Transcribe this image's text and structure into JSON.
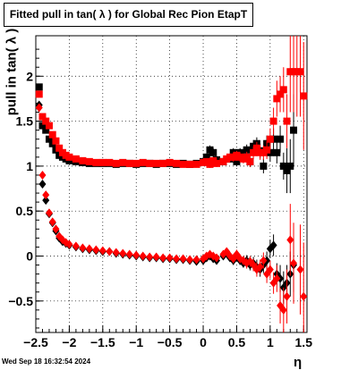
{
  "title": "Fitted pull in tan( λ ) for Global Rec Pion EtapT",
  "xlabel": "η",
  "ylabel": "pull in tan( λ )",
  "timestamp": "Wed Sep 18 16:32:54 2024",
  "chart_data": {
    "type": "scatter",
    "xlim": [
      -2.5,
      1.55
    ],
    "ylim": [
      -0.85,
      2.45
    ],
    "grid": true,
    "x_ticks": [
      -2.5,
      -2,
      -1.5,
      -1,
      -0.5,
      0,
      0.5,
      1,
      1.5
    ],
    "x_tick_labels": [
      "−2.5",
      "−2",
      "−1.5",
      "−1",
      "−0.5",
      "0",
      "0.5",
      "1",
      "1.5"
    ],
    "y_ticks": [
      -0.5,
      0,
      0.5,
      1,
      1.5,
      2
    ],
    "y_tick_labels": [
      "−0.5",
      "0",
      "0.5",
      "1",
      "1.5",
      "2"
    ],
    "series": [
      {
        "color": "#000000",
        "marker": "square",
        "points": [
          [
            -2.45,
            1.88,
            0.03
          ],
          [
            -2.4,
            1.45,
            0.03
          ],
          [
            -2.35,
            1.4,
            0.02
          ],
          [
            -2.3,
            1.3,
            0.02
          ],
          [
            -2.25,
            1.25,
            0.02
          ],
          [
            -2.2,
            1.18,
            0.02
          ],
          [
            -2.15,
            1.12,
            0.02
          ],
          [
            -2.1,
            1.1,
            0.02
          ],
          [
            -2.05,
            1.08,
            0.02
          ],
          [
            -2.0,
            1.06,
            0.02
          ],
          [
            -1.9,
            1.05,
            0.02
          ],
          [
            -1.8,
            1.04,
            0.02
          ],
          [
            -1.7,
            1.03,
            0.02
          ],
          [
            -1.6,
            1.03,
            0.02
          ],
          [
            -1.5,
            1.03,
            0.02
          ],
          [
            -1.4,
            1.03,
            0.02
          ],
          [
            -1.3,
            1.02,
            0.02
          ],
          [
            -1.2,
            1.03,
            0.02
          ],
          [
            -1.1,
            1.03,
            0.02
          ],
          [
            -1.0,
            1.02,
            0.02
          ],
          [
            -0.9,
            1.03,
            0.02
          ],
          [
            -0.8,
            1.03,
            0.02
          ],
          [
            -0.7,
            1.02,
            0.02
          ],
          [
            -0.6,
            1.03,
            0.02
          ],
          [
            -0.5,
            1.03,
            0.02
          ],
          [
            -0.4,
            1.02,
            0.02
          ],
          [
            -0.3,
            1.03,
            0.02
          ],
          [
            -0.2,
            1.02,
            0.02
          ],
          [
            -0.1,
            1.03,
            0.02
          ],
          [
            0.0,
            1.05,
            0.03
          ],
          [
            0.05,
            1.1,
            0.04
          ],
          [
            0.1,
            1.18,
            0.05
          ],
          [
            0.15,
            1.15,
            0.05
          ],
          [
            0.2,
            1.07,
            0.04
          ],
          [
            0.3,
            1.05,
            0.04
          ],
          [
            0.4,
            1.08,
            0.04
          ],
          [
            0.45,
            1.15,
            0.05
          ],
          [
            0.5,
            1.05,
            0.05
          ],
          [
            0.55,
            1.15,
            0.05
          ],
          [
            0.6,
            1.1,
            0.05
          ],
          [
            0.65,
            1.18,
            0.06
          ],
          [
            0.7,
            1.05,
            0.06
          ],
          [
            0.75,
            1.22,
            0.07
          ],
          [
            0.8,
            1.25,
            0.07
          ],
          [
            0.85,
            1.17,
            0.08
          ],
          [
            0.9,
            1.0,
            0.08
          ],
          [
            0.95,
            1.25,
            0.09
          ],
          [
            1.0,
            1.15,
            0.1
          ],
          [
            1.05,
            1.3,
            0.12
          ],
          [
            1.1,
            1.15,
            0.12
          ],
          [
            1.15,
            1.3,
            0.15
          ],
          [
            1.2,
            1.0,
            0.15
          ],
          [
            1.25,
            0.95,
            0.25
          ],
          [
            1.3,
            1.0,
            0.3
          ],
          [
            1.35,
            1.4,
            0.4
          ]
        ]
      },
      {
        "color": "#000000",
        "marker": "diamond",
        "points": [
          [
            -2.45,
            1.68,
            0.03
          ],
          [
            -2.4,
            0.8,
            0.03
          ],
          [
            -2.35,
            0.62,
            0.02
          ],
          [
            -2.3,
            0.47,
            0.02
          ],
          [
            -2.25,
            0.37,
            0.02
          ],
          [
            -2.2,
            0.28,
            0.02
          ],
          [
            -2.15,
            0.2,
            0.02
          ],
          [
            -2.1,
            0.16,
            0.02
          ],
          [
            -2.05,
            0.14,
            0.02
          ],
          [
            -2.0,
            0.12,
            0.02
          ],
          [
            -1.9,
            0.1,
            0.02
          ],
          [
            -1.8,
            0.08,
            0.02
          ],
          [
            -1.7,
            0.07,
            0.02
          ],
          [
            -1.6,
            0.06,
            0.02
          ],
          [
            -1.5,
            0.05,
            0.02
          ],
          [
            -1.4,
            0.05,
            0.02
          ],
          [
            -1.3,
            0.03,
            0.02
          ],
          [
            -1.2,
            0.02,
            0.02
          ],
          [
            -1.1,
            0.01,
            0.02
          ],
          [
            -1.0,
            0.0,
            0.02
          ],
          [
            -0.9,
            -0.01,
            0.02
          ],
          [
            -0.8,
            -0.02,
            0.02
          ],
          [
            -0.7,
            -0.02,
            0.02
          ],
          [
            -0.6,
            -0.03,
            0.02
          ],
          [
            -0.5,
            -0.03,
            0.02
          ],
          [
            -0.4,
            -0.04,
            0.02
          ],
          [
            -0.3,
            -0.04,
            0.02
          ],
          [
            -0.2,
            -0.05,
            0.02
          ],
          [
            -0.1,
            -0.06,
            0.02
          ],
          [
            0.0,
            -0.05,
            0.03
          ],
          [
            0.05,
            -0.02,
            0.03
          ],
          [
            0.1,
            0.0,
            0.04
          ],
          [
            0.15,
            -0.03,
            0.04
          ],
          [
            0.2,
            -0.05,
            0.04
          ],
          [
            0.3,
            0.0,
            0.04
          ],
          [
            0.35,
            0.03,
            0.04
          ],
          [
            0.4,
            -0.02,
            0.04
          ],
          [
            0.45,
            -0.05,
            0.05
          ],
          [
            0.5,
            0.0,
            0.05
          ],
          [
            0.55,
            -0.05,
            0.05
          ],
          [
            0.6,
            -0.08,
            0.05
          ],
          [
            0.65,
            -0.05,
            0.06
          ],
          [
            0.7,
            -0.1,
            0.06
          ],
          [
            0.75,
            -0.08,
            0.07
          ],
          [
            0.8,
            -0.12,
            0.08
          ],
          [
            0.85,
            -0.15,
            0.08
          ],
          [
            0.9,
            -0.1,
            0.09
          ],
          [
            0.95,
            -0.05,
            0.1
          ],
          [
            1.0,
            0.08,
            0.1
          ],
          [
            1.05,
            0.12,
            0.12
          ],
          [
            1.1,
            -0.2,
            0.12
          ],
          [
            1.15,
            -0.25,
            0.15
          ],
          [
            1.2,
            -0.35,
            0.18
          ],
          [
            1.25,
            -0.3,
            0.2
          ],
          [
            1.3,
            -0.2,
            0.25
          ],
          [
            1.35,
            -0.1,
            0.3
          ]
        ]
      },
      {
        "color": "#ff0000",
        "marker": "square",
        "points": [
          [
            -2.45,
            1.8,
            0.03
          ],
          [
            -2.4,
            1.55,
            0.03
          ],
          [
            -2.35,
            1.5,
            0.02
          ],
          [
            -2.3,
            1.45,
            0.02
          ],
          [
            -2.25,
            1.35,
            0.02
          ],
          [
            -2.2,
            1.28,
            0.02
          ],
          [
            -2.15,
            1.2,
            0.02
          ],
          [
            -2.1,
            1.15,
            0.02
          ],
          [
            -2.05,
            1.12,
            0.02
          ],
          [
            -2.0,
            1.1,
            0.02
          ],
          [
            -1.9,
            1.08,
            0.02
          ],
          [
            -1.8,
            1.06,
            0.02
          ],
          [
            -1.7,
            1.05,
            0.02
          ],
          [
            -1.6,
            1.04,
            0.02
          ],
          [
            -1.5,
            1.04,
            0.02
          ],
          [
            -1.4,
            1.04,
            0.02
          ],
          [
            -1.3,
            1.03,
            0.02
          ],
          [
            -1.2,
            1.04,
            0.02
          ],
          [
            -1.1,
            1.03,
            0.02
          ],
          [
            -1.0,
            1.03,
            0.02
          ],
          [
            -0.9,
            1.04,
            0.02
          ],
          [
            -0.8,
            1.03,
            0.02
          ],
          [
            -0.7,
            1.03,
            0.02
          ],
          [
            -0.6,
            1.03,
            0.02
          ],
          [
            -0.5,
            1.04,
            0.02
          ],
          [
            -0.4,
            1.03,
            0.02
          ],
          [
            -0.3,
            1.02,
            0.02
          ],
          [
            -0.2,
            1.02,
            0.02
          ],
          [
            -0.1,
            1.02,
            0.02
          ],
          [
            0.0,
            1.04,
            0.03
          ],
          [
            0.05,
            1.05,
            0.03
          ],
          [
            0.1,
            1.02,
            0.04
          ],
          [
            0.15,
            1.06,
            0.04
          ],
          [
            0.2,
            1.03,
            0.04
          ],
          [
            0.3,
            1.05,
            0.04
          ],
          [
            0.35,
            1.08,
            0.04
          ],
          [
            0.4,
            1.1,
            0.04
          ],
          [
            0.45,
            1.1,
            0.05
          ],
          [
            0.5,
            1.12,
            0.05
          ],
          [
            0.55,
            1.1,
            0.05
          ],
          [
            0.6,
            1.08,
            0.05
          ],
          [
            0.65,
            1.1,
            0.06
          ],
          [
            0.7,
            1.05,
            0.06
          ],
          [
            0.75,
            1.15,
            0.07
          ],
          [
            0.8,
            1.2,
            0.07
          ],
          [
            0.85,
            1.15,
            0.08
          ],
          [
            0.9,
            1.15,
            0.08
          ],
          [
            0.95,
            1.18,
            0.1
          ],
          [
            1.0,
            1.3,
            0.12
          ],
          [
            1.05,
            1.5,
            0.15
          ],
          [
            1.1,
            1.75,
            0.2
          ],
          [
            1.15,
            1.8,
            0.2
          ],
          [
            1.2,
            1.85,
            0.25
          ],
          [
            1.25,
            1.5,
            0.3
          ],
          [
            1.3,
            2.05,
            0.45
          ],
          [
            1.35,
            2.05,
            0.45
          ],
          [
            1.4,
            2.05,
            0.5
          ],
          [
            1.45,
            2.05,
            0.5
          ],
          [
            1.5,
            1.78,
            0.6
          ]
        ]
      },
      {
        "color": "#ff0000",
        "marker": "diamond",
        "points": [
          [
            -2.45,
            1.65,
            0.03
          ],
          [
            -2.4,
            0.9,
            0.03
          ],
          [
            -2.35,
            0.68,
            0.02
          ],
          [
            -2.3,
            0.48,
            0.02
          ],
          [
            -2.25,
            0.38,
            0.02
          ],
          [
            -2.2,
            0.3,
            0.02
          ],
          [
            -2.15,
            0.22,
            0.02
          ],
          [
            -2.1,
            0.18,
            0.02
          ],
          [
            -2.05,
            0.15,
            0.02
          ],
          [
            -2.0,
            0.13,
            0.02
          ],
          [
            -1.9,
            0.11,
            0.02
          ],
          [
            -1.8,
            0.09,
            0.02
          ],
          [
            -1.7,
            0.08,
            0.02
          ],
          [
            -1.6,
            0.07,
            0.02
          ],
          [
            -1.5,
            0.06,
            0.02
          ],
          [
            -1.4,
            0.05,
            0.02
          ],
          [
            -1.3,
            0.04,
            0.02
          ],
          [
            -1.2,
            0.03,
            0.02
          ],
          [
            -1.1,
            0.02,
            0.02
          ],
          [
            -1.0,
            0.01,
            0.02
          ],
          [
            -0.9,
            0.0,
            0.02
          ],
          [
            -0.8,
            -0.01,
            0.02
          ],
          [
            -0.7,
            -0.01,
            0.02
          ],
          [
            -0.6,
            -0.02,
            0.02
          ],
          [
            -0.5,
            -0.02,
            0.02
          ],
          [
            -0.4,
            -0.03,
            0.02
          ],
          [
            -0.3,
            -0.03,
            0.02
          ],
          [
            -0.2,
            -0.04,
            0.02
          ],
          [
            -0.1,
            -0.04,
            0.02
          ],
          [
            0.0,
            -0.03,
            0.03
          ],
          [
            0.05,
            0.0,
            0.03
          ],
          [
            0.1,
            0.02,
            0.04
          ],
          [
            0.15,
            0.0,
            0.04
          ],
          [
            0.2,
            -0.02,
            0.04
          ],
          [
            0.3,
            0.02,
            0.04
          ],
          [
            0.35,
            0.05,
            0.04
          ],
          [
            0.4,
            0.0,
            0.04
          ],
          [
            0.45,
            -0.03,
            0.05
          ],
          [
            0.5,
            0.02,
            0.05
          ],
          [
            0.55,
            -0.03,
            0.05
          ],
          [
            0.6,
            -0.05,
            0.05
          ],
          [
            0.65,
            -0.08,
            0.06
          ],
          [
            0.7,
            -0.06,
            0.06
          ],
          [
            0.75,
            -0.1,
            0.07
          ],
          [
            0.8,
            -0.15,
            0.08
          ],
          [
            0.85,
            -0.12,
            0.08
          ],
          [
            0.9,
            -0.05,
            0.09
          ],
          [
            0.95,
            -0.2,
            0.1
          ],
          [
            1.0,
            -0.15,
            0.1
          ],
          [
            1.05,
            -0.3,
            0.12
          ],
          [
            1.1,
            -0.25,
            0.15
          ],
          [
            1.15,
            -0.55,
            0.2
          ],
          [
            1.2,
            -0.6,
            0.25
          ],
          [
            1.25,
            -0.45,
            0.3
          ],
          [
            1.3,
            0.18,
            0.4
          ],
          [
            1.35,
            -0.08,
            0.45
          ],
          [
            1.45,
            -0.15,
            0.5
          ],
          [
            1.5,
            -0.45,
            0.6
          ]
        ]
      }
    ]
  }
}
